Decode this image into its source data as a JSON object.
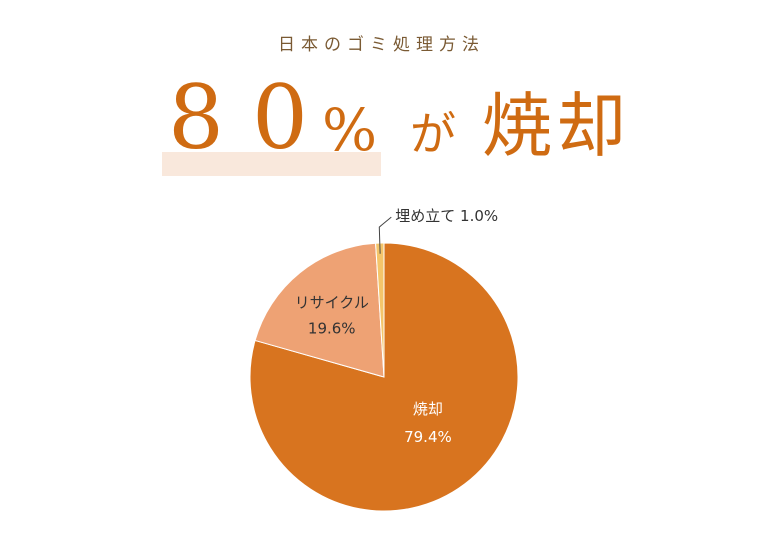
{
  "header": {
    "subtitle": "日本のゴミ処理方法",
    "headline_number": "80",
    "headline_percent": "%",
    "headline_particle": "が",
    "headline_word": "焼却"
  },
  "colors": {
    "accent": "#cf6b12",
    "incineration": "#d8741f",
    "recycle": "#eea274",
    "landfill": "#f4c56a",
    "highlight": "#f9e8dc"
  },
  "chart_data": {
    "type": "pie",
    "title": "日本のゴミ処理方法",
    "slices": [
      {
        "label": "焼却",
        "value": 79.4,
        "display": "79.4%",
        "color": "#d8741f"
      },
      {
        "label": "リサイクル",
        "value": 19.6,
        "display": "19.6%",
        "color": "#eea274"
      },
      {
        "label": "埋め立て",
        "value": 1.0,
        "display": "1.0%",
        "color": "#f4c56a"
      }
    ],
    "start": "12 o'clock",
    "direction": "clockwise",
    "legend": "none"
  }
}
